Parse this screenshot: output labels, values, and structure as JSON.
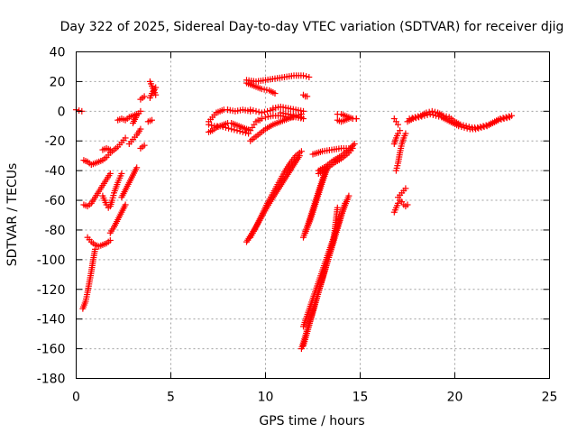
{
  "chart_data": {
    "type": "scatter",
    "title": "Day 322 of 2025, Sidereal Day-to-day VTEC variation (SDTVAR) for receiver djig",
    "xlabel": "GPS time / hours",
    "ylabel": "SDTVAR / TECUs",
    "xlim": [
      0,
      25
    ],
    "ylim": [
      -180,
      40
    ],
    "xticks": [
      0,
      5,
      10,
      15,
      20,
      25
    ],
    "yticks": [
      40,
      20,
      0,
      -20,
      -40,
      -60,
      -80,
      -100,
      -120,
      -140,
      -160,
      -180
    ],
    "grid": true,
    "marker": "+",
    "color": "#ff0000",
    "segments": [
      {
        "x": [
          0.0,
          0.3
        ],
        "y": [
          1,
          0
        ]
      },
      {
        "x": [
          0.35,
          0.5,
          0.6,
          0.7,
          0.8,
          0.9,
          1.0
        ],
        "y": [
          -133,
          -128,
          -122,
          -115,
          -108,
          -100,
          -93
        ]
      },
      {
        "x": [
          0.6,
          0.8,
          1.0,
          1.2,
          1.4,
          1.6,
          1.8
        ],
        "y": [
          -85,
          -88,
          -90,
          -91,
          -90,
          -89,
          -87
        ]
      },
      {
        "x": [
          1.8,
          2.0,
          2.2,
          2.4,
          2.6
        ],
        "y": [
          -82,
          -78,
          -73,
          -68,
          -63
        ]
      },
      {
        "x": [
          0.4,
          0.6,
          0.8,
          1.0,
          1.2,
          1.4,
          1.6,
          1.8
        ],
        "y": [
          -63,
          -64,
          -62,
          -58,
          -54,
          -50,
          -46,
          -42
        ]
      },
      {
        "x": [
          1.4,
          1.5,
          1.6,
          1.7,
          1.8,
          1.9,
          2.0,
          2.2,
          2.4
        ],
        "y": [
          -57,
          -60,
          -63,
          -65,
          -64,
          -60,
          -55,
          -48,
          -42
        ]
      },
      {
        "x": [
          2.4,
          2.6,
          2.8,
          3.0,
          3.2
        ],
        "y": [
          -58,
          -53,
          -48,
          -43,
          -38
        ]
      },
      {
        "x": [
          0.4,
          0.6,
          0.8,
          1.0,
          1.2,
          1.4,
          1.6,
          1.8,
          2.0,
          2.2,
          2.4,
          2.6
        ],
        "y": [
          -33,
          -34,
          -36,
          -35,
          -34,
          -33,
          -31,
          -28,
          -26,
          -24,
          -21,
          -18
        ]
      },
      {
        "x": [
          1.4,
          1.6,
          1.8
        ],
        "y": [
          -26,
          -25,
          -26
        ]
      },
      {
        "x": [
          2.2,
          2.4,
          2.6,
          2.8,
          3.0,
          3.2
        ],
        "y": [
          -6,
          -5,
          -6,
          -4,
          -3,
          -2
        ]
      },
      {
        "x": [
          2.8,
          3.0,
          3.2,
          3.4
        ],
        "y": [
          -22,
          -19,
          -16,
          -12
        ]
      },
      {
        "x": [
          3.0,
          3.2,
          3.4
        ],
        "y": [
          -8,
          -3,
          0
        ]
      },
      {
        "x": [
          3.4,
          3.6
        ],
        "y": [
          8,
          10
        ]
      },
      {
        "x": [
          3.4,
          3.6
        ],
        "y": [
          -25,
          -23
        ]
      },
      {
        "x": [
          3.9,
          4.0,
          4.1,
          4.2
        ],
        "y": [
          20,
          17,
          14,
          11
        ]
      },
      {
        "x": [
          3.9,
          4.0,
          4.2
        ],
        "y": [
          9,
          12,
          16
        ]
      },
      {
        "x": [
          3.8,
          4.0
        ],
        "y": [
          -7,
          -6
        ]
      },
      {
        "x": [
          7.0,
          7.2,
          7.4,
          7.6,
          7.8,
          8.0,
          8.2,
          8.4,
          8.6,
          8.8,
          9.0,
          9.2
        ],
        "y": [
          -14,
          -13,
          -11,
          -10,
          -9,
          -8,
          -8,
          -9,
          -10,
          -11,
          -12,
          -13
        ]
      },
      {
        "x": [
          7.0,
          7.3,
          7.6,
          7.9,
          8.2,
          8.5,
          8.8,
          9.1
        ],
        "y": [
          -9,
          -10,
          -10,
          -11,
          -12,
          -13,
          -14,
          -15
        ]
      },
      {
        "x": [
          7.0,
          7.2,
          7.4,
          7.6,
          7.8,
          8.0
        ],
        "y": [
          -7,
          -4,
          -1,
          0,
          1,
          1
        ]
      },
      {
        "x": [
          8.0,
          8.4,
          8.8,
          9.2
        ],
        "y": [
          1,
          0,
          1,
          0
        ]
      },
      {
        "x": [
          9.2,
          9.5,
          9.8,
          10.1,
          10.4
        ],
        "y": [
          1,
          0,
          -1,
          0,
          1
        ]
      },
      {
        "x": [
          9.0,
          9.5,
          10.0,
          10.5,
          11.0,
          11.5,
          12.0,
          12.3
        ],
        "y": [
          21,
          20,
          21,
          22,
          23,
          24,
          24,
          23
        ]
      },
      {
        "x": [
          9.0,
          9.4,
          9.8,
          10.2,
          10.5
        ],
        "y": [
          19,
          17,
          15,
          14,
          12
        ]
      },
      {
        "x": [
          10.0,
          10.4,
          10.8,
          11.2,
          11.6,
          12.0
        ],
        "y": [
          -4,
          -3,
          -3,
          -4,
          -4,
          -5
        ]
      },
      {
        "x": [
          10.4,
          10.8,
          11.2,
          11.6,
          12.0
        ],
        "y": [
          2,
          3,
          2,
          1,
          0
        ]
      },
      {
        "x": [
          10.8,
          11.2,
          11.6,
          11.9
        ],
        "y": [
          -1,
          -2,
          -3,
          -4
        ]
      },
      {
        "x": [
          12.0,
          12.1,
          12.2
        ],
        "y": [
          11,
          10,
          10
        ]
      },
      {
        "x": [
          9.2,
          9.6,
          10.0,
          10.4,
          10.8,
          11.2,
          11.6,
          11.9
        ],
        "y": [
          -20,
          -16,
          -12,
          -9,
          -7,
          -5,
          -3,
          -2
        ]
      },
      {
        "x": [
          9.3,
          9.4,
          9.5,
          9.6,
          9.7,
          9.8
        ],
        "y": [
          -11,
          -9,
          -7,
          -6,
          -6,
          -5
        ]
      },
      {
        "x": [
          9.2,
          9.5,
          9.8,
          10.1,
          10.4,
          10.7,
          11.0,
          11.3,
          11.6,
          11.9
        ],
        "y": [
          -85,
          -78,
          -70,
          -62,
          -55,
          -48,
          -41,
          -35,
          -30,
          -27
        ]
      },
      {
        "x": [
          9.0,
          9.4,
          9.8,
          10.2,
          10.6,
          11.0,
          11.4,
          11.8
        ],
        "y": [
          -88,
          -80,
          -71,
          -62,
          -54,
          -46,
          -38,
          -30
        ]
      },
      {
        "x": [
          12.0,
          12.3,
          12.6,
          12.9,
          13.2
        ],
        "y": [
          -85,
          -74,
          -62,
          -50,
          -39
        ]
      },
      {
        "x": [
          12.1,
          12.4,
          12.7,
          13.0,
          13.3
        ],
        "y": [
          -82,
          -72,
          -60,
          -48,
          -37
        ]
      },
      {
        "x": [
          11.9,
          12.3,
          12.7,
          13.1,
          13.5,
          13.9,
          14.2
        ],
        "y": [
          -160,
          -143,
          -126,
          -109,
          -92,
          -75,
          -62
        ]
      },
      {
        "x": [
          12.0,
          12.4,
          12.8,
          13.2,
          13.6,
          13.8
        ],
        "y": [
          -158,
          -140,
          -122,
          -104,
          -86,
          -65
        ]
      },
      {
        "x": [
          12.0,
          12.4,
          12.8,
          13.2,
          13.6,
          14.0,
          14.4
        ],
        "y": [
          -145,
          -130,
          -115,
          -100,
          -85,
          -70,
          -57
        ]
      },
      {
        "x": [
          12.5,
          13.0,
          13.5,
          14.0,
          14.4
        ],
        "y": [
          -29,
          -27,
          -26,
          -25,
          -25
        ]
      },
      {
        "x": [
          12.8,
          13.2,
          13.6,
          14.0,
          14.4,
          14.7
        ],
        "y": [
          -40,
          -37,
          -33,
          -30,
          -26,
          -22
        ]
      },
      {
        "x": [
          12.8,
          13.2,
          13.6,
          14.0,
          14.4,
          14.6
        ],
        "y": [
          -42,
          -39,
          -35,
          -32,
          -28,
          -25
        ]
      },
      {
        "x": [
          13.8,
          14.0,
          14.2,
          14.4,
          14.6,
          14.8
        ],
        "y": [
          -6,
          -7,
          -6,
          -5,
          -5,
          -5
        ]
      },
      {
        "x": [
          13.8,
          14.0,
          14.2,
          14.4,
          14.6,
          14.8
        ],
        "y": [
          -2,
          -2,
          -3,
          -4,
          -5,
          -5
        ]
      },
      {
        "x": [
          16.8,
          16.9,
          17.0
        ],
        "y": [
          -5,
          -7,
          -9
        ]
      },
      {
        "x": [
          16.9,
          17.0,
          17.1,
          17.2,
          17.3,
          17.4
        ],
        "y": [
          -40,
          -35,
          -28,
          -22,
          -18,
          -15
        ]
      },
      {
        "x": [
          16.8,
          16.9,
          17.0,
          17.1
        ],
        "y": [
          -22,
          -18,
          -15,
          -13
        ]
      },
      {
        "x": [
          16.8,
          16.9,
          17.0,
          17.1,
          17.2,
          17.3,
          17.4,
          17.5
        ],
        "y": [
          -68,
          -65,
          -62,
          -60,
          -61,
          -63,
          -64,
          -63
        ]
      },
      {
        "x": [
          17.0,
          17.2,
          17.4
        ],
        "y": [
          -58,
          -55,
          -52
        ]
      },
      {
        "x": [
          17.5,
          17.8,
          18.1,
          18.4,
          18.7,
          19.0,
          19.3,
          19.6,
          19.9,
          20.2,
          20.5,
          20.8,
          21.1,
          21.4,
          21.7,
          22.0,
          22.3,
          22.6,
          22.9
        ],
        "y": [
          -7,
          -5,
          -4,
          -3,
          -2,
          -3,
          -4,
          -6,
          -8,
          -10,
          -11,
          -12,
          -12,
          -11,
          -10,
          -8,
          -6,
          -5,
          -4
        ]
      },
      {
        "x": [
          17.6,
          17.9,
          18.2,
          18.5,
          18.8,
          19.1,
          19.4,
          19.7,
          20.0,
          20.3,
          20.6,
          20.9,
          21.2,
          21.5,
          21.8,
          22.1,
          22.4,
          22.7,
          23.0
        ],
        "y": [
          -5,
          -4,
          -3,
          -1,
          0,
          -1,
          -3,
          -4,
          -7,
          -9,
          -10,
          -11,
          -11,
          -10,
          -9,
          -7,
          -5,
          -4,
          -3
        ]
      }
    ]
  }
}
